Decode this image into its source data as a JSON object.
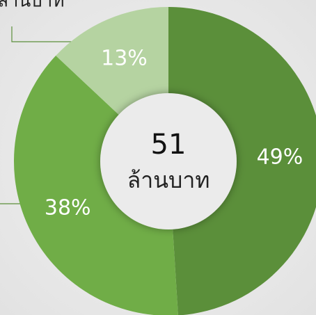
{
  "chart_data": {
    "type": "pie",
    "donut": true,
    "categories": [
      null,
      null,
      null
    ],
    "values": [
      49,
      38,
      13
    ],
    "value_labels": [
      "49%",
      "38%",
      "13%"
    ],
    "colors": [
      "#5b8f3a",
      "#70ad47",
      "#b5d3a1"
    ],
    "center_value": "51",
    "center_label": "ล้านบาท",
    "annotations": [
      "ล้านบาท"
    ]
  }
}
